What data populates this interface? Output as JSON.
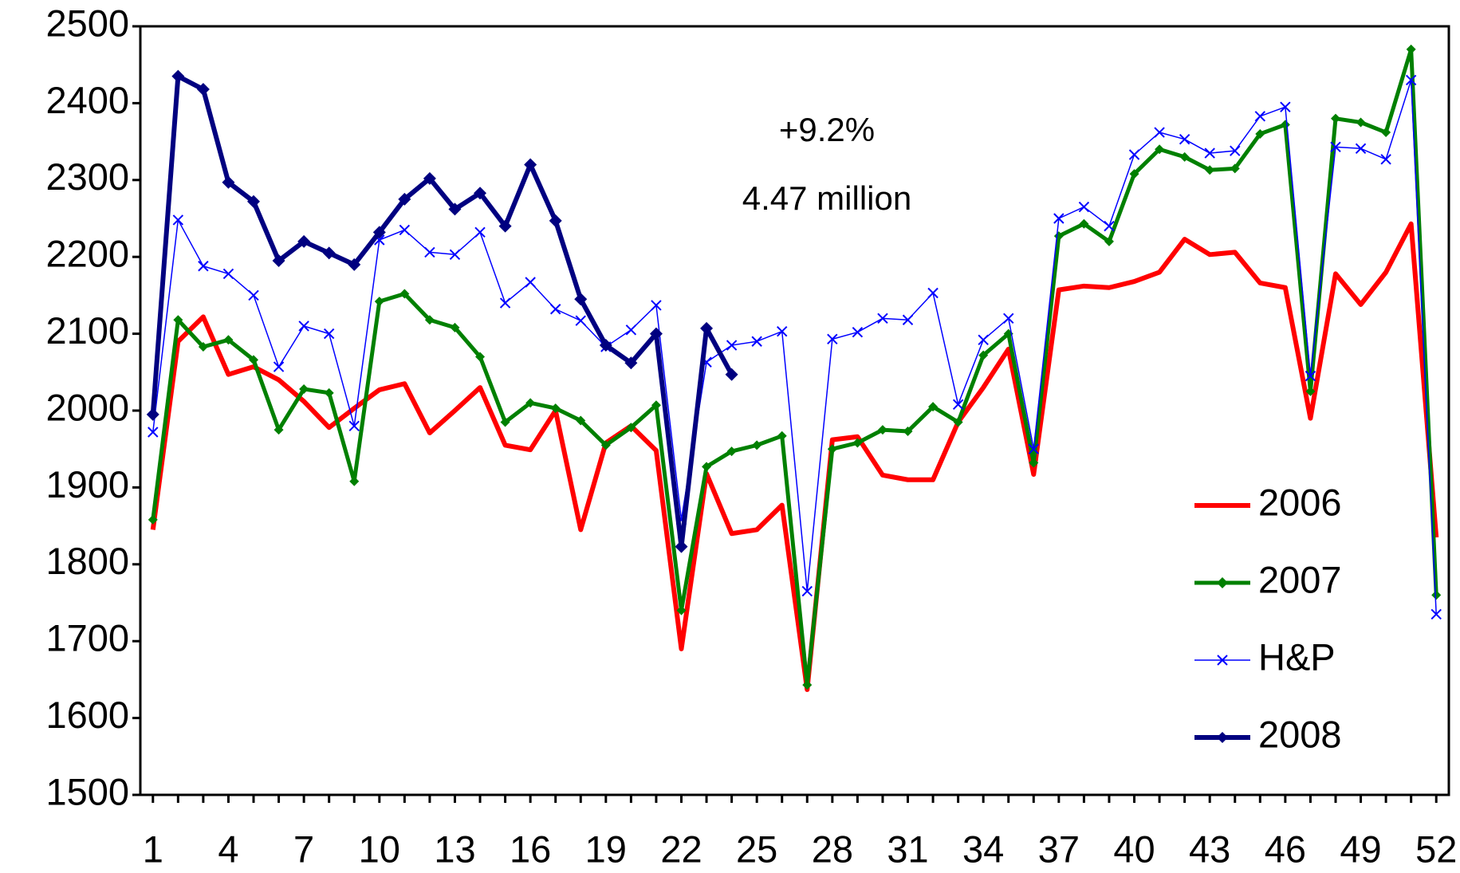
{
  "chart_data": {
    "type": "line",
    "annotations": [
      "+9.2%",
      "4.47 million"
    ],
    "x": [
      1,
      2,
      3,
      4,
      5,
      6,
      7,
      8,
      9,
      10,
      11,
      12,
      13,
      14,
      15,
      16,
      17,
      18,
      19,
      20,
      21,
      22,
      23,
      24,
      25,
      26,
      27,
      28,
      29,
      30,
      31,
      32,
      33,
      34,
      35,
      36,
      37,
      38,
      39,
      40,
      41,
      42,
      43,
      44,
      45,
      46,
      47,
      48,
      49,
      50,
      51,
      52
    ],
    "xlim": [
      0.5,
      52.5
    ],
    "xticks": [
      1,
      4,
      7,
      10,
      13,
      16,
      19,
      22,
      25,
      28,
      31,
      34,
      37,
      40,
      43,
      46,
      49,
      52
    ],
    "ylim": [
      1500,
      2500
    ],
    "yticks": [
      1500,
      1600,
      1700,
      1800,
      1900,
      2000,
      2100,
      2200,
      2300,
      2400,
      2500
    ],
    "grid": false,
    "legend": "lower right",
    "series": [
      {
        "name": "2006",
        "color": "#ff0000",
        "marker": "none",
        "values": [
          1845,
          2090,
          2122,
          2047,
          2057,
          2040,
          2012,
          1978,
          2003,
          2027,
          2035,
          1971,
          2000,
          2030,
          1955,
          1949,
          2000,
          1845,
          1958,
          1980,
          1948,
          1690,
          1918,
          1840,
          1845,
          1877,
          1637,
          1962,
          1966,
          1916,
          1910,
          1910,
          1985,
          2030,
          2080,
          1917,
          2157,
          2162,
          2160,
          2168,
          2180,
          2223,
          2203,
          2206,
          2166,
          2160,
          1990,
          2178,
          2138,
          2180,
          2243,
          1835
        ]
      },
      {
        "name": "2007",
        "color": "#008000",
        "marker": "diamond",
        "values": [
          1858,
          2118,
          2083,
          2092,
          2066,
          1975,
          2028,
          2023,
          1908,
          2142,
          2152,
          2118,
          2108,
          2070,
          1985,
          2010,
          2003,
          1987,
          1955,
          1978,
          2007,
          1740,
          1927,
          1947,
          1955,
          1967,
          1643,
          1950,
          1958,
          1975,
          1973,
          2005,
          1985,
          2072,
          2100,
          1932,
          2227,
          2243,
          2220,
          2308,
          2340,
          2330,
          2313,
          2315,
          2360,
          2372,
          2025,
          2380,
          2375,
          2362,
          2470,
          1760
        ]
      },
      {
        "name": "H&P",
        "color": "#0000ff",
        "marker": "x",
        "values": [
          1972,
          2248,
          2188,
          2178,
          2150,
          2057,
          2110,
          2100,
          1980,
          2222,
          2235,
          2206,
          2203,
          2232,
          2140,
          2167,
          2132,
          2117,
          2083,
          2105,
          2137,
          1858,
          2063,
          2085,
          2090,
          2103,
          1765,
          2093,
          2102,
          2120,
          2118,
          2153,
          2008,
          2092,
          2120,
          1950,
          2250,
          2265,
          2240,
          2333,
          2362,
          2353,
          2335,
          2338,
          2383,
          2395,
          2045,
          2343,
          2341,
          2327,
          2430,
          1735
        ]
      },
      {
        "name": "2008",
        "color": "#000080",
        "marker": "diamond",
        "values": [
          1995,
          2435,
          2418,
          2297,
          2272,
          2195,
          2220,
          2205,
          2190,
          2232,
          2275,
          2302,
          2262,
          2283,
          2240,
          2320,
          2247,
          2145,
          2085,
          2062,
          2100,
          1823,
          2107,
          2047,
          null,
          null,
          null,
          null,
          null,
          null,
          null,
          null,
          null,
          null,
          null,
          null,
          null,
          null,
          null,
          null,
          null,
          null,
          null,
          null,
          null,
          null,
          null,
          null,
          null,
          null,
          null,
          null
        ]
      }
    ]
  }
}
